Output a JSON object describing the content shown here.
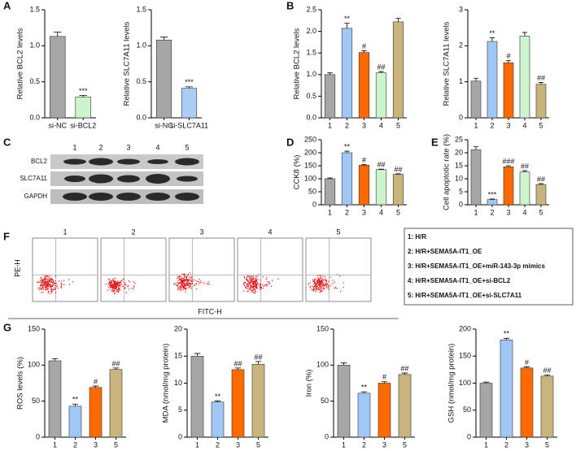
{
  "panel_letters": [
    "A",
    "B",
    "C",
    "D",
    "E",
    "F",
    "G"
  ],
  "chart_data": [
    {
      "type": "bar",
      "y_label": "Relative BCL2 levels",
      "categories": [
        "si-NC",
        "si-BCL2"
      ],
      "values": [
        1.13,
        0.29
      ],
      "errors": [
        0.06,
        0.02
      ],
      "annotations": [
        null,
        "***"
      ],
      "colors": [
        "#a6a6a6",
        "#ccf5cc"
      ],
      "ylim": [
        0,
        1.5
      ],
      "yticks": [
        {
          "value": 0,
          "label": "0.0"
        },
        0.5,
        {
          "value": 1,
          "label": "1.0"
        },
        1.5
      ]
    },
    {
      "type": "bar",
      "y_label": "Relative SLC7A11 levels",
      "categories": [
        "si-NC",
        "si-SLC7A11"
      ],
      "values": [
        1.08,
        0.41
      ],
      "errors": [
        0.04,
        0.02
      ],
      "annotations": [
        null,
        "***"
      ],
      "colors": [
        "#a6a6a6",
        "#a9cdf5"
      ],
      "ylim": [
        0,
        1.5
      ],
      "yticks": [
        {
          "value": 0,
          "label": "0.0"
        },
        0.5,
        {
          "value": 1,
          "label": "1.0"
        },
        1.5
      ]
    },
    {
      "type": "bar",
      "y_label": "Relative BCL2 levels",
      "categories": [
        "1",
        "2",
        "3",
        "4",
        "5"
      ],
      "values": [
        1.0,
        2.07,
        1.51,
        1.04,
        2.22
      ],
      "errors": [
        0.04,
        0.12,
        0.04,
        0.03,
        0.08
      ],
      "annotations": [
        null,
        "**",
        "#",
        "##",
        null
      ],
      "colors": [
        "#a6a6a6",
        "#9fc8f7",
        "#ff6a00",
        "#ccf5cc",
        "#c8b47c"
      ],
      "ylim": [
        0,
        2.5
      ],
      "yticks": [
        {
          "value": 0,
          "label": "0.0"
        },
        0.5,
        {
          "value": 1,
          "label": "1.0"
        },
        1.5,
        {
          "value": 2,
          "label": "2.0"
        },
        2.5
      ]
    },
    {
      "type": "bar",
      "y_label": "Relative SLC7A11 levels",
      "categories": [
        "1",
        "2",
        "3",
        "4",
        "5"
      ],
      "values": [
        1.02,
        2.12,
        1.53,
        2.27,
        0.93
      ],
      "errors": [
        0.08,
        0.1,
        0.06,
        0.1,
        0.05
      ],
      "annotations": [
        null,
        "**",
        "#",
        null,
        "##"
      ],
      "colors": [
        "#a6a6a6",
        "#9fc8f7",
        "#ff6a00",
        "#ccf5cc",
        "#c8b47c"
      ],
      "ylim": [
        0,
        3
      ],
      "yticks": [
        0,
        1,
        2,
        3
      ]
    },
    {
      "type": "bar",
      "y_label": "CCK8 (%)",
      "categories": [
        "1",
        "2",
        "3",
        "4",
        "5"
      ],
      "values": [
        100,
        200,
        152,
        135,
        117
      ],
      "errors": [
        3,
        6,
        3,
        2,
        2
      ],
      "annotations": [
        null,
        "**",
        "#",
        "##",
        "##"
      ],
      "colors": [
        "#a6a6a6",
        "#9fc8f7",
        "#ff6a00",
        "#ccf5cc",
        "#c8b47c"
      ],
      "ylim": [
        0,
        250
      ],
      "yticks": [
        0,
        50,
        100,
        150,
        200,
        250
      ]
    },
    {
      "type": "bar",
      "y_label": "Cell apoptotic rate (%)",
      "categories": [
        "1",
        "2",
        "3",
        "4",
        "5"
      ],
      "values": [
        21.2,
        2.0,
        14.6,
        12.6,
        7.8
      ],
      "errors": [
        1.1,
        0.2,
        0.4,
        0.5,
        0.3
      ],
      "annotations": [
        null,
        "***",
        "###",
        "##",
        "##"
      ],
      "colors": [
        "#a6a6a6",
        "#9fc8f7",
        "#ff6a00",
        "#ccf5cc",
        "#c8b47c"
      ],
      "ylim": [
        0,
        25
      ],
      "yticks": [
        0,
        5,
        10,
        15,
        20,
        25
      ]
    },
    {
      "type": "bar",
      "y_label": "ROS levels (%)",
      "categories": [
        "1",
        "2",
        "3",
        "5"
      ],
      "values": [
        106,
        43,
        69,
        94
      ],
      "errors": [
        3,
        3,
        2,
        2
      ],
      "annotations": [
        null,
        "**",
        "#",
        "##"
      ],
      "colors": [
        "#a6a6a6",
        "#9fc8f7",
        "#ff6a00",
        "#c8b47c"
      ],
      "ylim": [
        0,
        150
      ],
      "yticks": [
        0,
        50,
        100,
        150
      ]
    },
    {
      "type": "bar",
      "y_label": "MDA (nmol/mg protein)",
      "categories": [
        "1",
        "2",
        "3",
        "5"
      ],
      "values": [
        15,
        6.5,
        12.5,
        13.5
      ],
      "errors": [
        0.5,
        0.2,
        0.3,
        0.5
      ],
      "annotations": [
        null,
        "**",
        "##",
        "##"
      ],
      "colors": [
        "#a6a6a6",
        "#9fc8f7",
        "#ff6a00",
        "#c8b47c"
      ],
      "ylim": [
        0,
        20
      ],
      "yticks": [
        0,
        5,
        10,
        15,
        20
      ]
    },
    {
      "type": "bar",
      "y_label": "Iron (%)",
      "categories": [
        "1",
        "2",
        "3",
        "5"
      ],
      "values": [
        100,
        61,
        75,
        87
      ],
      "errors": [
        3,
        2,
        2,
        2
      ],
      "annotations": [
        null,
        "**",
        "#",
        "##"
      ],
      "colors": [
        "#a6a6a6",
        "#9fc8f7",
        "#ff6a00",
        "#c8b47c"
      ],
      "ylim": [
        0,
        150
      ],
      "yticks": [
        0,
        50,
        100,
        150
      ]
    },
    {
      "type": "bar",
      "y_label": "GSH (nmol/mg protein)",
      "categories": [
        "1",
        "2",
        "3",
        "5"
      ],
      "values": [
        100,
        180,
        128,
        113
      ],
      "errors": [
        2,
        3,
        2,
        2
      ],
      "annotations": [
        null,
        "**",
        "#",
        "##"
      ],
      "colors": [
        "#a6a6a6",
        "#9fc8f7",
        "#ff6a00",
        "#c8b47c"
      ],
      "ylim": [
        0,
        200
      ],
      "yticks": [
        0,
        50,
        100,
        150,
        200
      ]
    }
  ],
  "western_blot": {
    "lanes": [
      "1",
      "2",
      "3",
      "4",
      "5"
    ],
    "rows": [
      "BCL2",
      "SLC7A11",
      "GAPDH"
    ]
  },
  "flow_cytometry": {
    "panels": [
      "1",
      "2",
      "3",
      "4",
      "5"
    ],
    "y_label": "PE-H",
    "x_label": "FITC-H"
  },
  "legend": [
    "1: H/R",
    "2: H/R+SEMA5A-IT1_OE",
    "3: H/R+SEMA5A-IT1_OE+miR-143-3p mimics",
    "4: H/R+SEMA5A-IT1_OE+si-BCL2",
    "5: H/R+SEMA5A-IT1_OE+si-SLC7A11"
  ]
}
